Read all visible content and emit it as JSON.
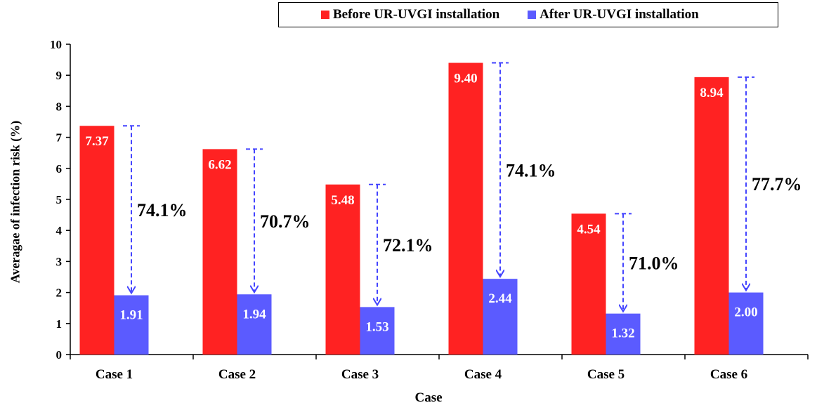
{
  "chart_data": {
    "type": "bar",
    "xlabel": "Case",
    "ylabel": "Averagae of infection risk (%)",
    "ylim": [
      0,
      10
    ],
    "yticks": [
      "0",
      "1",
      "2",
      "3",
      "4",
      "5",
      "6",
      "7",
      "8",
      "9",
      "10"
    ],
    "categories": [
      "Case 1",
      "Case 2",
      "Case 3",
      "Case 4",
      "Case 5",
      "Case 6"
    ],
    "series": [
      {
        "name": "Before UR-UVGI installation",
        "color": "#ff2222",
        "values": [
          7.37,
          6.62,
          5.48,
          9.4,
          4.54,
          8.94
        ],
        "labels": [
          "7.37",
          "6.62",
          "5.48",
          "9.40",
          "4.54",
          "8.94"
        ]
      },
      {
        "name": "After UR-UVGI installation",
        "color": "#5b5bff",
        "values": [
          1.91,
          1.94,
          1.53,
          2.44,
          1.32,
          2.0
        ],
        "labels": [
          "1.91",
          "1.94",
          "1.53",
          "2.44",
          "1.32",
          "2.00"
        ]
      }
    ],
    "reductions": [
      "74.1%",
      "70.7%",
      "72.1%",
      "74.1%",
      "71.0%",
      "77.7%"
    ],
    "arrow_color": "#4444ff",
    "legend_position": "top-right",
    "grid": false
  }
}
